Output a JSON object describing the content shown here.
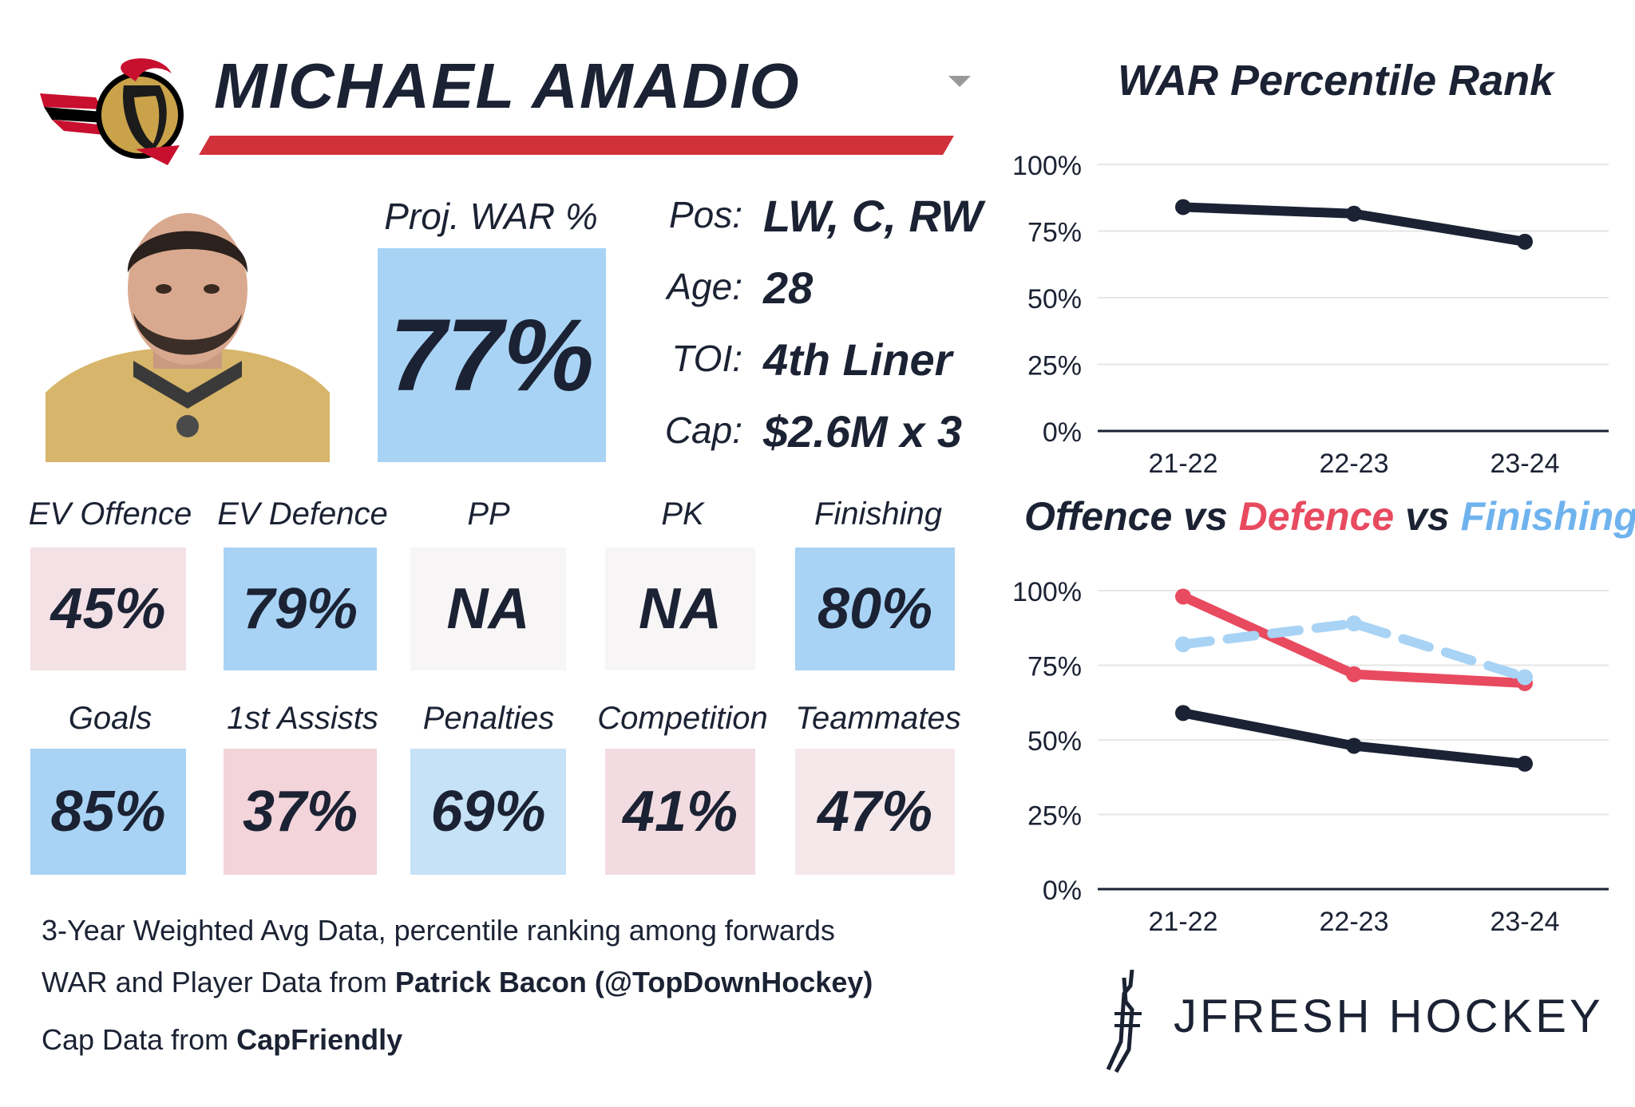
{
  "header": {
    "player_name": "MICHAEL AMADIO",
    "team_logo_icon": "senators-logo-icon",
    "accent_color": "#d1313b"
  },
  "projection": {
    "label": "Proj. WAR %",
    "value": "77%",
    "color": "#a8d3f5"
  },
  "info": [
    {
      "label": "Pos:",
      "value": "LW, C, RW"
    },
    {
      "label": "Age:",
      "value": "28"
    },
    {
      "label": "TOI:",
      "value": "4th Liner"
    },
    {
      "label": "Cap:",
      "value": "$2.6M x 3"
    }
  ],
  "stats_row1": [
    {
      "label": "EV Offence",
      "value": "45%",
      "color": "#f4e1e5"
    },
    {
      "label": "EV Defence",
      "value": "79%",
      "color": "#a8d3f5"
    },
    {
      "label": "PP",
      "value": "NA",
      "color": "#f7f5f6"
    },
    {
      "label": "PK",
      "value": "NA",
      "color": "#f7f5f6"
    },
    {
      "label": "Finishing",
      "value": "80%",
      "color": "#a8d3f5"
    }
  ],
  "stats_row2": [
    {
      "label": "Goals",
      "value": "85%",
      "color": "#a8d3f5"
    },
    {
      "label": "1st Assists",
      "value": "37%",
      "color": "#f3d4da"
    },
    {
      "label": "Penalties",
      "value": "69%",
      "color": "#c6e2f7"
    },
    {
      "label": "Competition",
      "value": "41%",
      "color": "#f3dce1"
    },
    {
      "label": "Teammates",
      "value": "47%",
      "color": "#f5e8eb"
    }
  ],
  "footer": {
    "line1": "3-Year Weighted Avg Data, percentile ranking among forwards",
    "line2_prefix": "WAR and Player Data from ",
    "line2_bold": "Patrick Bacon (@TopDownHockey)",
    "line3_prefix": "Cap Data from ",
    "line3_bold": "CapFriendly"
  },
  "brand": {
    "text": "JFRESH HOCKEY",
    "icon": "hockey-sticks-logo-icon"
  },
  "chart_data": [
    {
      "type": "line",
      "title": "WAR Percentile Rank",
      "categories": [
        "21-22",
        "22-23",
        "23-24"
      ],
      "y_ticks": [
        "0%",
        "25%",
        "50%",
        "75%",
        "100%"
      ],
      "ylim": [
        0,
        100
      ],
      "grid": true,
      "series": [
        {
          "values": [
            84,
            81.5,
            71
          ],
          "color": "#1b2233",
          "dash": false
        }
      ]
    },
    {
      "type": "line",
      "title_parts": [
        {
          "text": "Offence",
          "color": "#1b2233"
        },
        {
          "text": " vs ",
          "color": "#1b2233"
        },
        {
          "text": "Defence",
          "color": "#e84a5f"
        },
        {
          "text": " vs ",
          "color": "#1b2233"
        },
        {
          "text": "Finishing",
          "color": "#6fb3ee"
        }
      ],
      "categories": [
        "21-22",
        "22-23",
        "23-24"
      ],
      "y_ticks": [
        "0%",
        "25%",
        "50%",
        "75%",
        "100%"
      ],
      "ylim": [
        0,
        100
      ],
      "grid": true,
      "series": [
        {
          "name": "Offence",
          "values": [
            59,
            48,
            42
          ],
          "color": "#1b2233",
          "dash": false
        },
        {
          "name": "Defence",
          "values": [
            98,
            72,
            69
          ],
          "color": "#e84a5f",
          "dash": false
        },
        {
          "name": "Finishing",
          "values": [
            82,
            89,
            71
          ],
          "color": "#a8d3f5",
          "dash": true
        }
      ]
    }
  ]
}
